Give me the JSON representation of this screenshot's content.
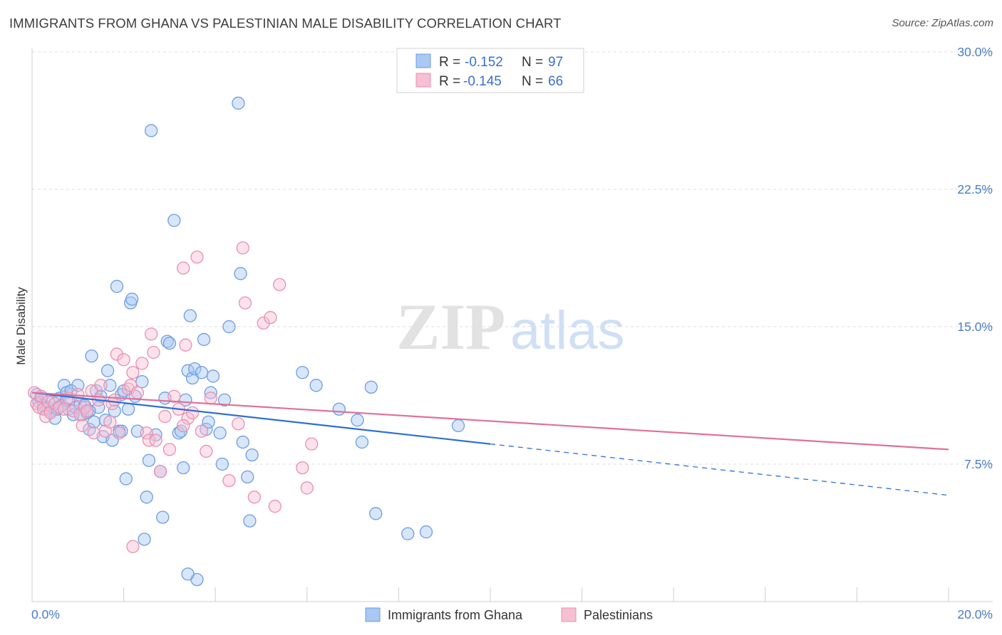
{
  "title": "IMMIGRANTS FROM GHANA VS PALESTINIAN MALE DISABILITY CORRELATION CHART",
  "source": "Source: ZipAtlas.com",
  "watermark": {
    "zip": "ZIP",
    "atlas": "atlas"
  },
  "colors": {
    "blue_fill": "#a9c8f2",
    "blue_stroke": "#6d9de0",
    "blue_line": "#2e6fd4",
    "pink_fill": "#f7bfd2",
    "pink_stroke": "#e98fb0",
    "pink_line": "#e0709a",
    "tick_text": "#4a7cc9",
    "grid": "#dedede"
  },
  "legend": {
    "rows": [
      {
        "r_label": "R =",
        "r_value": "-0.152",
        "n_label": "N =",
        "n_value": "97",
        "color": "blue"
      },
      {
        "r_label": "R =",
        "r_value": "-0.145",
        "n_label": "N =",
        "n_value": "66",
        "color": "pink"
      }
    ]
  },
  "chart_data": {
    "type": "scatter",
    "title": "IMMIGRANTS FROM GHANA VS PALESTINIAN MALE DISABILITY CORRELATION CHART",
    "xlabel": "",
    "ylabel": "Male Disability",
    "xlim": [
      0,
      20
    ],
    "ylim": [
      0,
      30.5
    ],
    "x_tick_labels": [
      "0.0%",
      "20.0%"
    ],
    "y_ticks": [
      7.5,
      15.0,
      22.5,
      30.0
    ],
    "y_tick_labels": [
      "7.5%",
      "15.0%",
      "22.5%",
      "30.0%"
    ],
    "grid": true,
    "legend_position": "top-center",
    "series": [
      {
        "name": "Immigrants from Ghana",
        "color": "blue",
        "trend": {
          "x0": 0,
          "y0": 11.4,
          "x1": 10,
          "y1": 8.6,
          "dashed_to": 20,
          "dashed_y1": 5.8
        },
        "points": [
          [
            0.1,
            11.3
          ],
          [
            0.15,
            10.9
          ],
          [
            0.2,
            11.1
          ],
          [
            0.25,
            10.7
          ],
          [
            0.3,
            10.5
          ],
          [
            0.35,
            10.6
          ],
          [
            0.4,
            10.4
          ],
          [
            0.45,
            10.9
          ],
          [
            0.5,
            10.0
          ],
          [
            0.55,
            10.6
          ],
          [
            0.6,
            11.1
          ],
          [
            0.65,
            10.7
          ],
          [
            0.7,
            11.8
          ],
          [
            0.75,
            11.4
          ],
          [
            0.8,
            10.5
          ],
          [
            0.85,
            11.5
          ],
          [
            0.9,
            10.2
          ],
          [
            0.95,
            10.6
          ],
          [
            1.0,
            11.8
          ],
          [
            1.05,
            10.8
          ],
          [
            1.1,
            10.2
          ],
          [
            1.15,
            10.7
          ],
          [
            1.2,
            10.3
          ],
          [
            1.25,
            9.4
          ],
          [
            1.3,
            13.4
          ],
          [
            1.35,
            9.8
          ],
          [
            1.4,
            11.5
          ],
          [
            1.45,
            10.6
          ],
          [
            1.5,
            11.2
          ],
          [
            1.55,
            9.0
          ],
          [
            1.6,
            9.9
          ],
          [
            1.65,
            12.6
          ],
          [
            1.7,
            11.8
          ],
          [
            1.75,
            8.8
          ],
          [
            1.8,
            10.4
          ],
          [
            1.85,
            17.2
          ],
          [
            1.9,
            9.3
          ],
          [
            1.95,
            11.3
          ],
          [
            2.0,
            11.5
          ],
          [
            2.05,
            6.7
          ],
          [
            2.1,
            10.5
          ],
          [
            2.15,
            16.3
          ],
          [
            2.18,
            16.5
          ],
          [
            2.25,
            11.2
          ],
          [
            2.3,
            9.3
          ],
          [
            2.4,
            12.0
          ],
          [
            2.45,
            3.4
          ],
          [
            2.5,
            5.7
          ],
          [
            2.55,
            7.7
          ],
          [
            2.6,
            25.7
          ],
          [
            2.7,
            9.1
          ],
          [
            2.8,
            7.1
          ],
          [
            2.85,
            4.6
          ],
          [
            2.9,
            11.1
          ],
          [
            2.95,
            14.2
          ],
          [
            3.0,
            14.1
          ],
          [
            3.1,
            20.8
          ],
          [
            3.2,
            9.2
          ],
          [
            3.25,
            9.3
          ],
          [
            3.3,
            7.3
          ],
          [
            3.35,
            11.0
          ],
          [
            3.4,
            12.6
          ],
          [
            3.45,
            15.6
          ],
          [
            3.5,
            12.2
          ],
          [
            3.55,
            12.7
          ],
          [
            3.6,
            1.2
          ],
          [
            3.7,
            12.5
          ],
          [
            3.75,
            14.3
          ],
          [
            3.8,
            9.4
          ],
          [
            3.85,
            9.8
          ],
          [
            3.9,
            11.4
          ],
          [
            3.95,
            12.3
          ],
          [
            4.1,
            9.2
          ],
          [
            4.15,
            7.5
          ],
          [
            4.2,
            11.0
          ],
          [
            4.3,
            15.0
          ],
          [
            4.5,
            27.2
          ],
          [
            4.55,
            17.9
          ],
          [
            4.6,
            8.7
          ],
          [
            4.7,
            6.8
          ],
          [
            4.75,
            4.4
          ],
          [
            4.8,
            8.0
          ],
          [
            3.4,
            1.5
          ],
          [
            5.9,
            12.5
          ],
          [
            6.2,
            11.8
          ],
          [
            6.7,
            10.5
          ],
          [
            7.1,
            9.9
          ],
          [
            7.2,
            8.7
          ],
          [
            7.4,
            11.7
          ],
          [
            7.5,
            4.8
          ],
          [
            8.2,
            3.7
          ],
          [
            8.6,
            3.8
          ],
          [
            9.3,
            9.6
          ],
          [
            1.95,
            9.3
          ],
          [
            0.75,
            11.0
          ],
          [
            0.55,
            10.5
          ],
          [
            1.25,
            10.4
          ]
        ]
      },
      {
        "name": "Palestinians",
        "color": "pink",
        "trend": {
          "x0": 0,
          "y0": 11.4,
          "x1": 20,
          "y1": 8.3
        },
        "points": [
          [
            0.05,
            11.4
          ],
          [
            0.1,
            10.8
          ],
          [
            0.15,
            10.6
          ],
          [
            0.2,
            11.2
          ],
          [
            0.25,
            10.5
          ],
          [
            0.3,
            10.1
          ],
          [
            0.35,
            10.9
          ],
          [
            0.4,
            10.3
          ],
          [
            0.5,
            10.8
          ],
          [
            0.6,
            10.6
          ],
          [
            0.7,
            10.5
          ],
          [
            0.8,
            11.1
          ],
          [
            0.9,
            10.4
          ],
          [
            1.0,
            11.3
          ],
          [
            1.05,
            10.2
          ],
          [
            1.1,
            9.6
          ],
          [
            1.15,
            10.6
          ],
          [
            1.2,
            10.4
          ],
          [
            1.3,
            11.5
          ],
          [
            1.35,
            9.2
          ],
          [
            1.45,
            11.0
          ],
          [
            1.5,
            11.8
          ],
          [
            1.6,
            9.3
          ],
          [
            1.7,
            9.8
          ],
          [
            1.75,
            10.8
          ],
          [
            1.8,
            11.0
          ],
          [
            1.85,
            13.5
          ],
          [
            1.9,
            9.2
          ],
          [
            2.0,
            13.2
          ],
          [
            2.1,
            11.6
          ],
          [
            2.15,
            11.8
          ],
          [
            2.2,
            12.5
          ],
          [
            2.3,
            11.4
          ],
          [
            2.4,
            13.0
          ],
          [
            2.5,
            9.2
          ],
          [
            2.55,
            8.8
          ],
          [
            2.6,
            14.6
          ],
          [
            2.65,
            13.6
          ],
          [
            2.7,
            8.8
          ],
          [
            2.8,
            7.1
          ],
          [
            2.9,
            10.1
          ],
          [
            3.0,
            8.3
          ],
          [
            3.1,
            11.2
          ],
          [
            3.2,
            10.5
          ],
          [
            3.3,
            18.2
          ],
          [
            3.35,
            14.0
          ],
          [
            3.4,
            10.0
          ],
          [
            3.5,
            10.3
          ],
          [
            3.6,
            18.8
          ],
          [
            3.7,
            9.3
          ],
          [
            3.8,
            8.2
          ],
          [
            3.9,
            11.1
          ],
          [
            3.3,
            9.6
          ],
          [
            4.3,
            6.6
          ],
          [
            4.5,
            9.7
          ],
          [
            4.6,
            19.3
          ],
          [
            4.65,
            16.3
          ],
          [
            4.85,
            5.7
          ],
          [
            5.05,
            15.2
          ],
          [
            5.2,
            15.5
          ],
          [
            5.3,
            5.2
          ],
          [
            5.4,
            17.3
          ],
          [
            5.9,
            7.3
          ],
          [
            6.0,
            6.2
          ],
          [
            6.1,
            8.6
          ],
          [
            2.2,
            3.0
          ]
        ]
      }
    ]
  },
  "bottom_legend": [
    {
      "label": "Immigrants from Ghana",
      "color": "blue"
    },
    {
      "label": "Palestinians",
      "color": "pink"
    }
  ]
}
